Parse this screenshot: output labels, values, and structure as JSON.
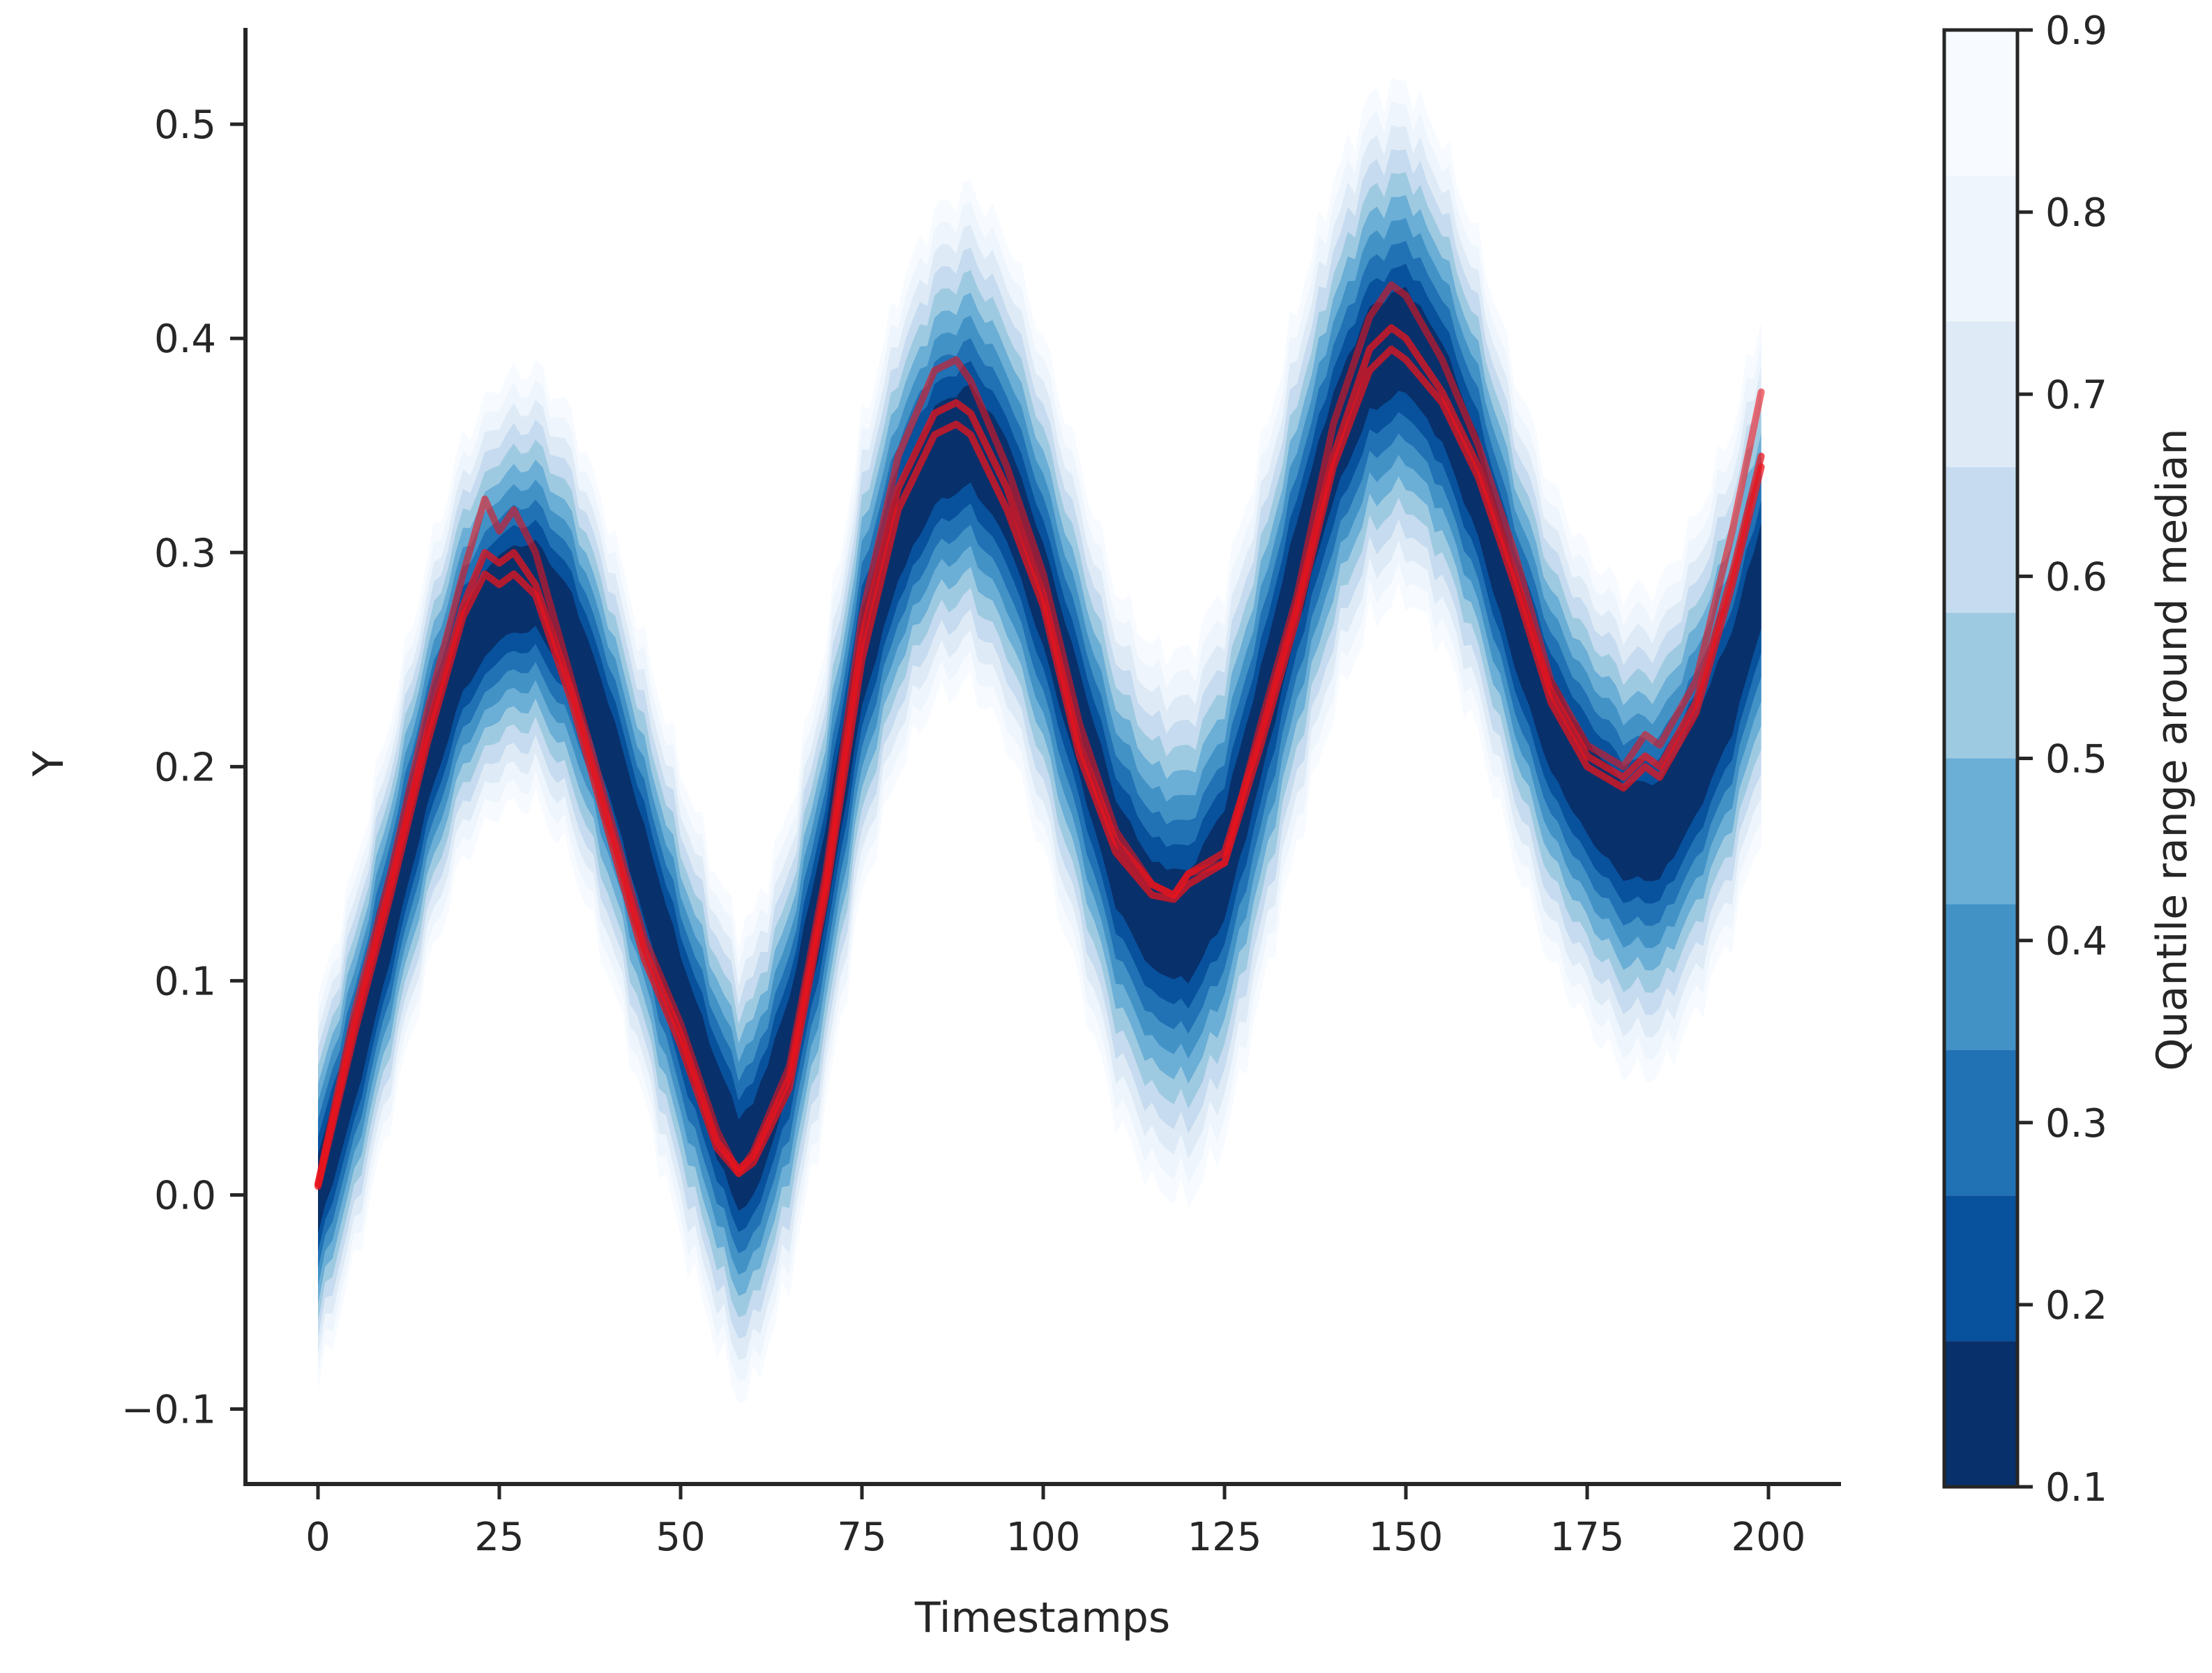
{
  "chart_data": {
    "type": "area",
    "title": "",
    "xlabel": "Timestamps",
    "ylabel": "Y",
    "xlim": [
      -10,
      210
    ],
    "ylim": [
      -0.135,
      0.545
    ],
    "x_ticks": [
      0,
      25,
      50,
      75,
      100,
      125,
      150,
      175,
      200
    ],
    "x_tick_labels": [
      "0",
      "25",
      "50",
      "75",
      "100",
      "125",
      "150",
      "175",
      "200"
    ],
    "y_ticks": [
      -0.1,
      0.0,
      0.1,
      0.2,
      0.3,
      0.4,
      0.5
    ],
    "y_tick_labels": [
      "−0.1",
      "0.0",
      "0.1",
      "0.2",
      "0.3",
      "0.4",
      "0.5"
    ],
    "grid": false,
    "median": {
      "x": [
        0,
        5,
        10,
        15,
        20,
        25,
        30,
        35,
        40,
        45,
        50,
        55,
        58,
        60,
        65,
        70,
        75,
        80,
        85,
        90,
        95,
        100,
        105,
        110,
        115,
        120,
        125,
        130,
        135,
        140,
        145,
        150,
        155,
        160,
        165,
        170,
        175,
        180,
        185,
        190,
        195,
        199
      ],
      "y": [
        0.0,
        0.06,
        0.13,
        0.2,
        0.255,
        0.28,
        0.285,
        0.26,
        0.21,
        0.15,
        0.09,
        0.04,
        0.015,
        0.02,
        0.07,
        0.15,
        0.25,
        0.31,
        0.345,
        0.355,
        0.33,
        0.28,
        0.22,
        0.16,
        0.13,
        0.125,
        0.155,
        0.22,
        0.29,
        0.35,
        0.39,
        0.4,
        0.375,
        0.33,
        0.27,
        0.22,
        0.19,
        0.17,
        0.17,
        0.2,
        0.24,
        0.29
      ]
    },
    "quantile_half_width_at_0.9": {
      "x": [
        0,
        25,
        50,
        75,
        100,
        125,
        150,
        175,
        199
      ],
      "y": [
        0.09,
        0.1,
        0.11,
        0.11,
        0.12,
        0.13,
        0.12,
        0.11,
        0.12
      ]
    },
    "sample_paths": {
      "color": "#e8141c",
      "x": [
        0,
        5,
        10,
        15,
        20,
        23,
        25,
        27,
        30,
        35,
        40,
        45,
        50,
        55,
        58,
        60,
        65,
        70,
        75,
        80,
        85,
        88,
        90,
        95,
        100,
        105,
        110,
        115,
        118,
        120,
        125,
        130,
        135,
        140,
        145,
        148,
        150,
        155,
        160,
        165,
        170,
        175,
        180,
        183,
        185,
        190,
        195,
        199
      ],
      "series": [
        {
          "values": [
            0.005,
            0.085,
            0.15,
            0.225,
            0.29,
            0.325,
            0.31,
            0.32,
            0.3,
            0.24,
            0.18,
            0.12,
            0.08,
            0.03,
            0.01,
            0.02,
            0.06,
            0.15,
            0.27,
            0.345,
            0.385,
            0.39,
            0.38,
            0.34,
            0.29,
            0.22,
            0.17,
            0.145,
            0.14,
            0.15,
            0.155,
            0.22,
            0.28,
            0.36,
            0.41,
            0.425,
            0.42,
            0.39,
            0.35,
            0.3,
            0.24,
            0.21,
            0.2,
            0.215,
            0.21,
            0.24,
            0.31,
            0.375
          ]
        },
        {
          "values": [
            0.005,
            0.08,
            0.145,
            0.215,
            0.275,
            0.3,
            0.295,
            0.3,
            0.285,
            0.235,
            0.175,
            0.115,
            0.075,
            0.025,
            0.012,
            0.018,
            0.055,
            0.145,
            0.26,
            0.33,
            0.365,
            0.37,
            0.365,
            0.33,
            0.28,
            0.21,
            0.165,
            0.145,
            0.14,
            0.15,
            0.16,
            0.215,
            0.275,
            0.345,
            0.395,
            0.405,
            0.4,
            0.375,
            0.34,
            0.29,
            0.235,
            0.205,
            0.195,
            0.205,
            0.2,
            0.23,
            0.29,
            0.345
          ]
        },
        {
          "values": [
            0.004,
            0.075,
            0.14,
            0.21,
            0.27,
            0.29,
            0.285,
            0.29,
            0.28,
            0.23,
            0.17,
            0.11,
            0.07,
            0.022,
            0.01,
            0.015,
            0.05,
            0.14,
            0.25,
            0.32,
            0.355,
            0.36,
            0.355,
            0.32,
            0.275,
            0.205,
            0.16,
            0.14,
            0.138,
            0.145,
            0.155,
            0.21,
            0.27,
            0.34,
            0.385,
            0.395,
            0.39,
            0.37,
            0.335,
            0.285,
            0.23,
            0.2,
            0.19,
            0.2,
            0.195,
            0.225,
            0.285,
            0.34
          ]
        }
      ]
    },
    "colorbar": {
      "label": "Quantile range around median",
      "cmap": "Blues",
      "ticks": [
        0.1,
        0.2,
        0.3,
        0.4,
        0.5,
        0.6,
        0.7,
        0.8,
        0.9
      ],
      "tick_labels": [
        "0.1",
        "0.2",
        "0.3",
        "0.4",
        "0.5",
        "0.6",
        "0.7",
        "0.8",
        "0.9"
      ],
      "levels": [
        0.1,
        0.18,
        0.26,
        0.34,
        0.42,
        0.5,
        0.58,
        0.66,
        0.74,
        0.82,
        0.9
      ],
      "colors": [
        "#08306b",
        "#08519c",
        "#2171b5",
        "#4292c6",
        "#6baed6",
        "#9ecae1",
        "#c6dbef",
        "#deebf7",
        "#eef5fc",
        "#f7fbff"
      ]
    }
  }
}
